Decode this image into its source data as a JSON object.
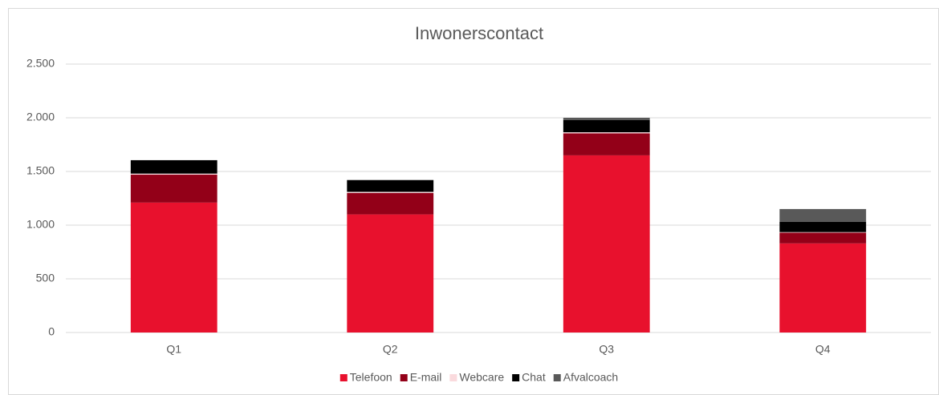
{
  "chart_data": {
    "type": "stacked_bar",
    "title": "Inwonerscontact",
    "categories": [
      "Q1",
      "Q2",
      "Q3",
      "Q4"
    ],
    "series": [
      {
        "name": "Telefoon",
        "color": "#e8112d",
        "values": [
          1210,
          1100,
          1650,
          830
        ]
      },
      {
        "name": "E-mail",
        "color": "#930018",
        "values": [
          260,
          200,
          205,
          100
        ]
      },
      {
        "name": "Webcare",
        "color": "#fadadd",
        "values": [
          10,
          10,
          10,
          5
        ]
      },
      {
        "name": "Chat",
        "color": "#000000",
        "values": [
          125,
          110,
          115,
          95
        ]
      },
      {
        "name": "Afvalcoach",
        "color": "#595959",
        "values": [
          0,
          0,
          20,
          120
        ]
      }
    ],
    "ylim": [
      0,
      2500
    ],
    "yticks": [
      0,
      500,
      {
        "value": 1000,
        "label": "1.000"
      },
      {
        "value": 1500,
        "label": "1.500"
      },
      {
        "value": 2000,
        "label": "2.000"
      },
      {
        "value": 2500,
        "label": "2.500"
      }
    ],
    "grid": true,
    "legend": "bottom"
  }
}
